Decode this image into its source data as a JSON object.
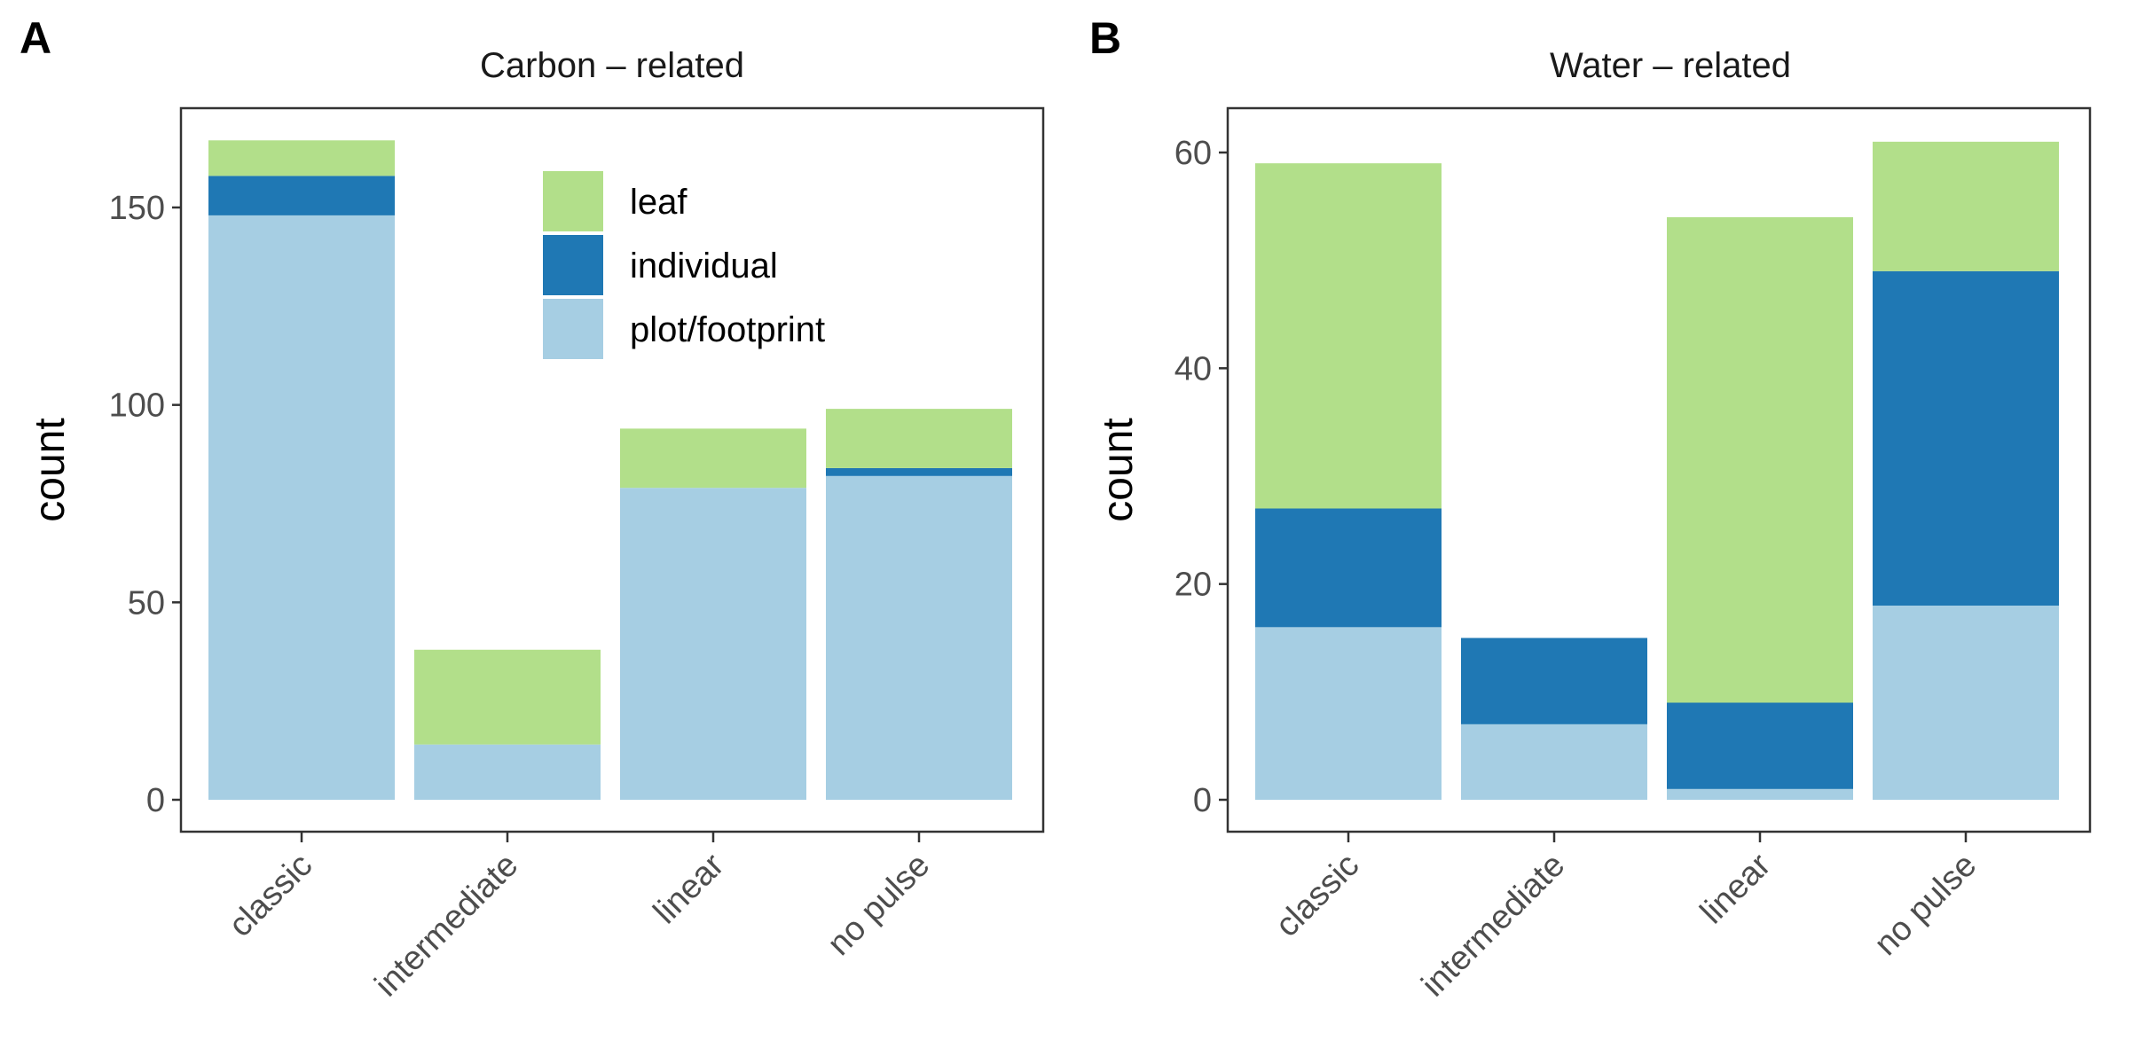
{
  "chart_data": [
    {
      "type": "bar",
      "stacked": true,
      "panel_label": "A",
      "title": "Carbon – related",
      "xlabel": "",
      "ylabel": "count",
      "categories": [
        "classic",
        "intermediate",
        "linear",
        "no pulse"
      ],
      "ylim": [
        0,
        170
      ],
      "yticks": [
        0,
        50,
        100,
        150
      ],
      "series": [
        {
          "name": "plot/footprint",
          "color": "#a6cee3",
          "values": [
            148,
            14,
            79,
            82
          ]
        },
        {
          "name": "individual",
          "color": "#1f78b4",
          "values": [
            10,
            0,
            0,
            2
          ]
        },
        {
          "name": "leaf",
          "color": "#b2df8a",
          "values": [
            9,
            24,
            15,
            15
          ]
        }
      ],
      "legend": {
        "placement": "top-right",
        "order": [
          "leaf",
          "individual",
          "plot/footprint"
        ],
        "entries": [
          {
            "label": "leaf",
            "color": "#b2df8a"
          },
          {
            "label": "individual",
            "color": "#1f78b4"
          },
          {
            "label": "plot/footprint",
            "color": "#a6cee3"
          }
        ]
      },
      "grid": false
    },
    {
      "type": "bar",
      "stacked": true,
      "panel_label": "B",
      "title": "Water – related",
      "xlabel": "",
      "ylabel": "count",
      "categories": [
        "classic",
        "intermediate",
        "linear",
        "no pulse"
      ],
      "ylim": [
        0,
        64
      ],
      "yticks": [
        0,
        20,
        40,
        60
      ],
      "series": [
        {
          "name": "plot/footprint",
          "color": "#a6cee3",
          "values": [
            16,
            7,
            1,
            18
          ]
        },
        {
          "name": "individual",
          "color": "#1f78b4",
          "values": [
            11,
            8,
            8,
            31
          ]
        },
        {
          "name": "leaf",
          "color": "#b2df8a",
          "values": [
            32,
            0,
            45,
            12
          ]
        }
      ],
      "grid": false
    }
  ]
}
